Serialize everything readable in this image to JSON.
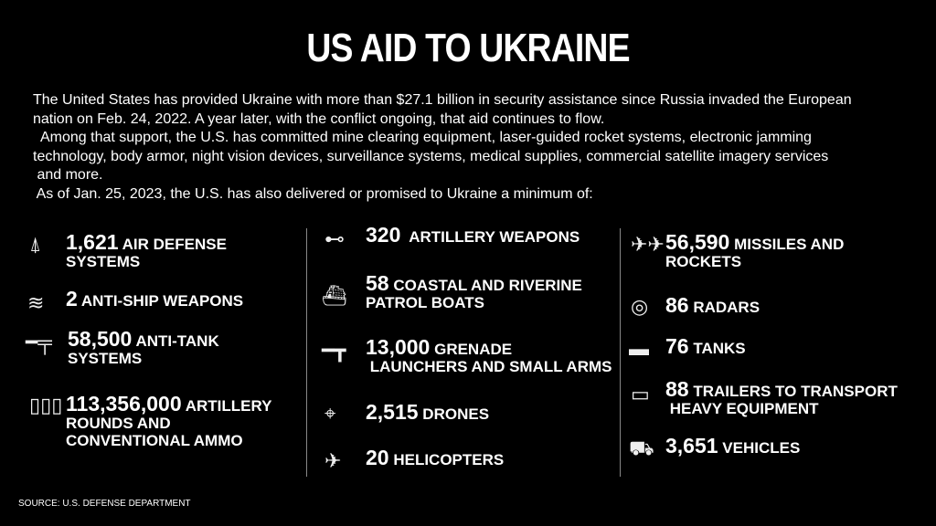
{
  "title": "US AID TO UKRAINE",
  "intro": [
    "The United States has provided Ukraine with more than $27.1 billion in security assistance since Russia invaded the European",
    "nation on Feb. 24, 2022. A year later, with the conflict ongoing, that aid continues to flow.",
    "  Among that support, the U.S. has committed mine clearing equipment, laser-guided rocket systems, electronic jamming",
    "technology, body armor, night vision devices, surveillance systems, medical supplies, commercial satellite imagery services",
    " and more.",
    " As of Jan. 25, 2023, the U.S. has also delivered or promised to Ukraine a minimum of:"
  ],
  "items": [
    {
      "icon": "air-defense-icon",
      "number": "1,621",
      "label1": "AIR DEFENSE",
      "label2": "SYSTEMS",
      "label3": ""
    },
    {
      "icon": "anti-ship-icon",
      "number": "2",
      "label1": "ANTI-SHIP WEAPONS",
      "label2": "",
      "label3": ""
    },
    {
      "icon": "anti-tank-icon",
      "number": "58,500",
      "label1": "ANTI-TANK",
      "label2": "SYSTEMS",
      "label3": ""
    },
    {
      "icon": "ammo-icon",
      "number": "113,356,000",
      "label1": "ARTILLERY",
      "label2": "ROUNDS AND",
      "label3": "CONVENTIONAL AMMO"
    },
    {
      "icon": "artillery-icon",
      "number": "320",
      "label1": " ARTILLERY WEAPONS",
      "label2": "",
      "label3": ""
    },
    {
      "icon": "boat-icon",
      "number": "58",
      "label1": "COASTAL AND RIVERINE",
      "label2": "PATROL BOATS",
      "label3": ""
    },
    {
      "icon": "rifle-icon",
      "number": "13,000",
      "label1": "GRENADE",
      "label2": " LAUNCHERS AND SMALL ARMS",
      "label3": ""
    },
    {
      "icon": "drone-icon",
      "number": "2,515",
      "label1": "DRONES",
      "label2": "",
      "label3": ""
    },
    {
      "icon": "helicopter-icon",
      "number": "20",
      "label1": "HELICOPTERS",
      "label2": "",
      "label3": ""
    },
    {
      "icon": "missiles-icon",
      "number": "56,590",
      "label1": "MISSILES AND",
      "label2": "ROCKETS",
      "label3": ""
    },
    {
      "icon": "radar-icon",
      "number": "86",
      "label1": "RADARS",
      "label2": "",
      "label3": ""
    },
    {
      "icon": "tank-icon",
      "number": "76",
      "label1": "TANKS",
      "label2": "",
      "label3": ""
    },
    {
      "icon": "trailer-icon",
      "number": "88",
      "label1": "TRAILERS TO TRANSPORT",
      "label2": " HEAVY EQUIPMENT",
      "label3": ""
    },
    {
      "icon": "vehicle-icon",
      "number": "3,651",
      "label1": "VEHICLES",
      "label2": "",
      "label3": ""
    }
  ],
  "source": "SOURCE: U.S. DEFENSE DEPARTMENT"
}
